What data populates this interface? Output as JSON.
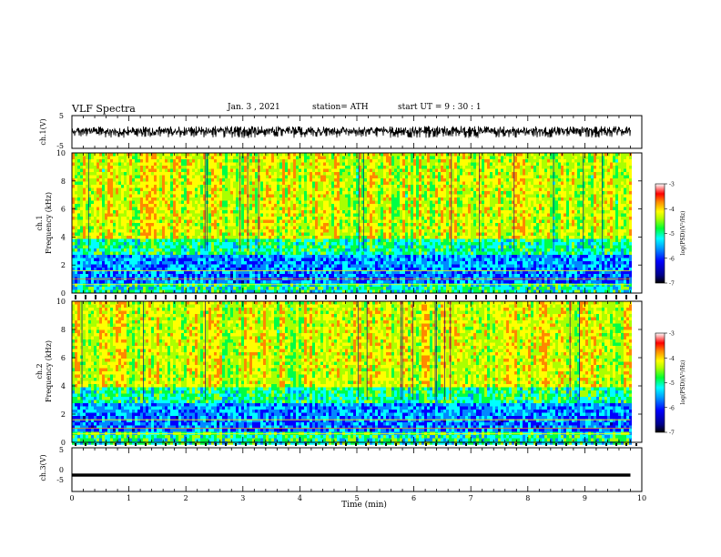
{
  "header": {
    "title": "VLF Spectra",
    "date": "Jan. 3 , 2021",
    "station": "station= ATH",
    "start": "start UT = 9 : 30 : 1"
  },
  "chart_data": [
    {
      "type": "line",
      "panel": "ch1-waveform",
      "ylabel": "ch.1(V)",
      "ylim": [
        -5,
        5
      ],
      "yticks": [
        "5",
        "-5"
      ],
      "x": [
        0,
        1,
        2,
        3,
        4,
        5,
        6,
        7,
        8,
        9,
        9.8
      ],
      "values_min": [
        -1.6,
        -1.8,
        -1.7,
        -1.9,
        -1.8,
        -1.7,
        -1.8,
        -1.9,
        -1.7,
        -1.8,
        -1.7
      ],
      "values_max": [
        1.6,
        1.7,
        1.8,
        1.9,
        1.7,
        1.6,
        1.8,
        1.9,
        1.7,
        1.8,
        1.7
      ]
    },
    {
      "type": "heatmap",
      "panel": "ch1-spectrogram",
      "ylabel_top": "ch.1",
      "ylabel": "Frequency (kHz)",
      "ylim": [
        0,
        10
      ],
      "yticks": [
        "0",
        "2",
        "4",
        "6",
        "8",
        "10"
      ],
      "xlim": [
        0,
        9.8
      ],
      "colorbar": {
        "label": "log(PSD)(V²/Hz)",
        "range": [
          -7,
          -3
        ],
        "ticks": [
          "-3",
          "-4",
          "-5",
          "-6",
          "-7"
        ]
      }
    },
    {
      "type": "heatmap",
      "panel": "ch2-spectrogram",
      "ylabel_top": "ch.2",
      "ylabel": "Frequency (kHz)",
      "ylim": [
        0,
        10
      ],
      "yticks": [
        "0",
        "2",
        "4",
        "6",
        "8",
        "10"
      ],
      "xlim": [
        0,
        9.8
      ],
      "colorbar": {
        "label": "log(PSD)(V²/Hz)",
        "range": [
          -7,
          -3
        ],
        "ticks": [
          "-3",
          "-4",
          "-5",
          "-6",
          "-7"
        ]
      }
    },
    {
      "type": "line",
      "panel": "ch3-waveform",
      "ylabel": "ch.3(V)",
      "ylim": [
        -5,
        5
      ],
      "yticks": [
        "5",
        "0",
        "-5"
      ],
      "x": [
        0,
        9.8
      ],
      "values_min": [
        -1.6,
        -1.6
      ],
      "values_max": [
        -0.9,
        -0.9
      ]
    }
  ],
  "xaxis": {
    "label": "Time (min)",
    "xlim": [
      0,
      10
    ],
    "ticks": [
      "0",
      "1",
      "2",
      "3",
      "4",
      "5",
      "6",
      "7",
      "8",
      "9",
      "10"
    ]
  },
  "colors": {
    "colormap": [
      "#000088",
      "#0000ff",
      "#0088ff",
      "#00ffff",
      "#00ff44",
      "#aaff00",
      "#ffff00",
      "#ff8800",
      "#ff0000",
      "#ffffff"
    ]
  }
}
